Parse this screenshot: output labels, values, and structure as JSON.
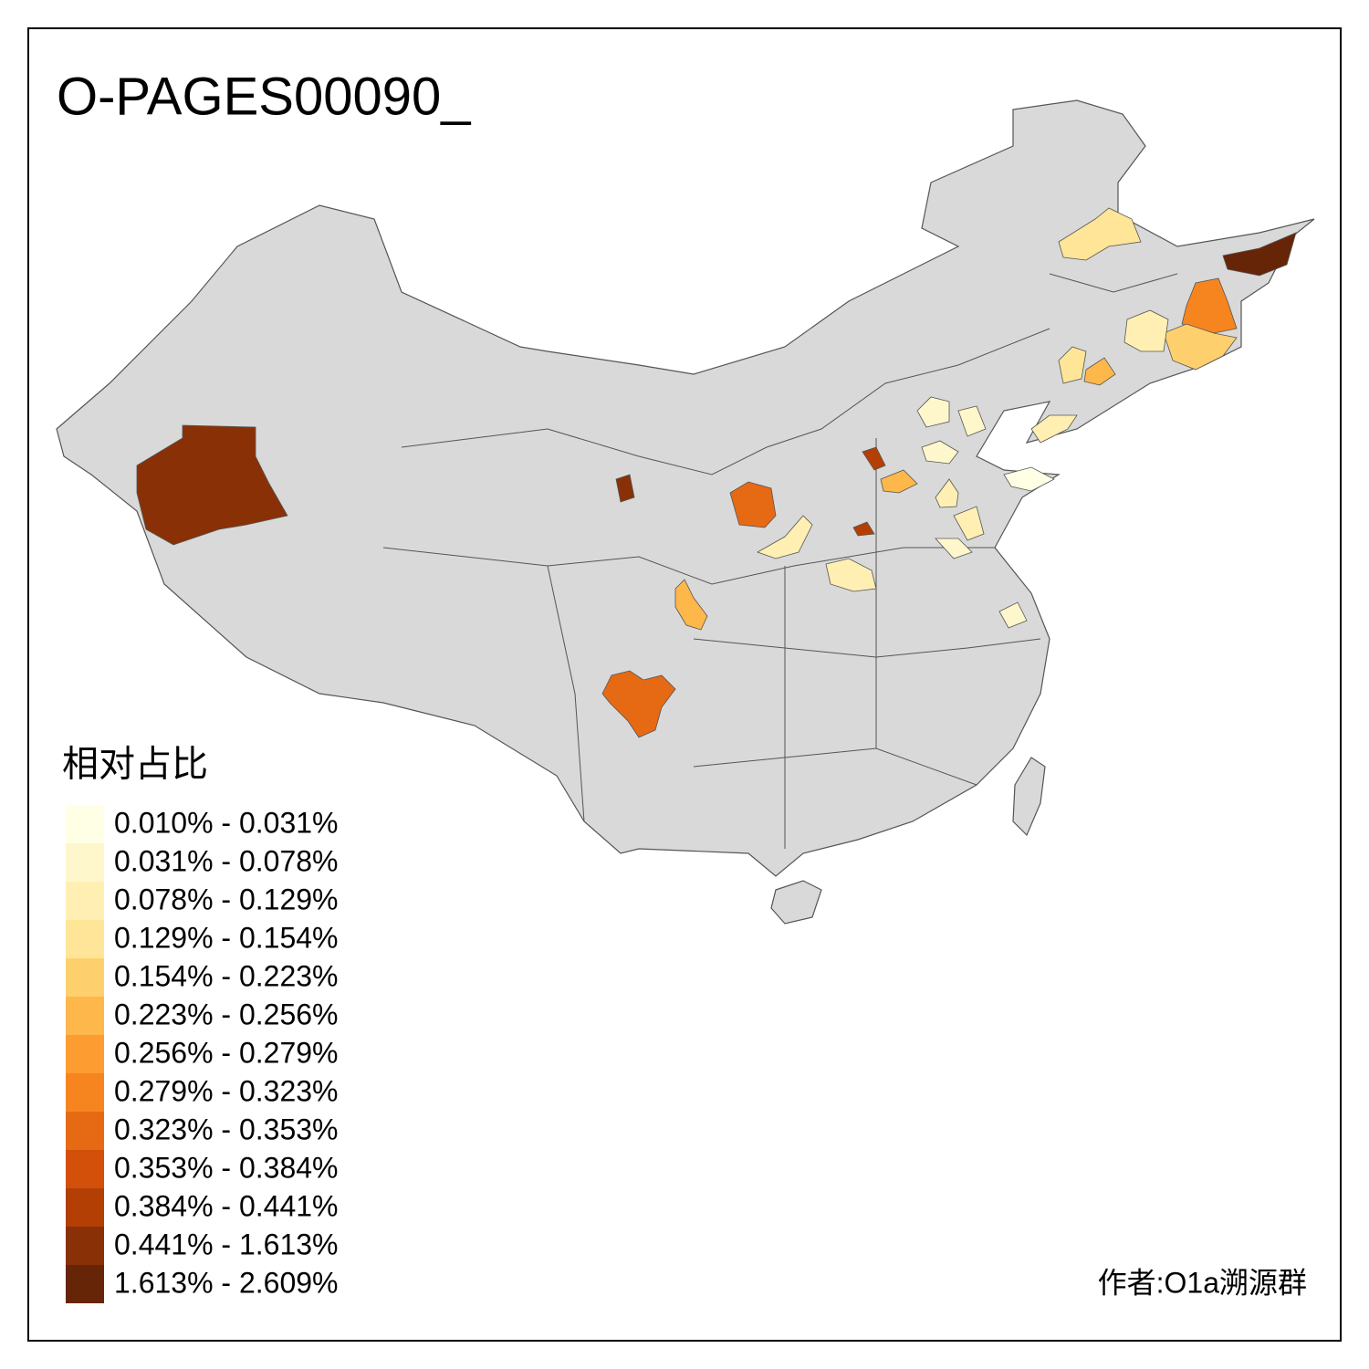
{
  "title": "O-PAGES00090_",
  "legend": {
    "title": "相对占比",
    "items": [
      {
        "label": "0.010% - 0.031%",
        "color": "#ffffe5"
      },
      {
        "label": "0.031% - 0.078%",
        "color": "#fff7cc"
      },
      {
        "label": "0.078% - 0.129%",
        "color": "#ffefb3"
      },
      {
        "label": "0.129% - 0.154%",
        "color": "#fee597"
      },
      {
        "label": "0.154% - 0.223%",
        "color": "#fed06d"
      },
      {
        "label": "0.223% - 0.256%",
        "color": "#feb74a"
      },
      {
        "label": "0.256% - 0.279%",
        "color": "#fd9c30"
      },
      {
        "label": "0.279% - 0.323%",
        "color": "#f7851f"
      },
      {
        "label": "0.323% - 0.353%",
        "color": "#e66914"
      },
      {
        "label": "0.353% - 0.384%",
        "color": "#d25009"
      },
      {
        "label": "0.384% - 0.441%",
        "color": "#b33f05"
      },
      {
        "label": "0.441% - 1.613%",
        "color": "#8a3006"
      },
      {
        "label": "1.613% - 2.609%",
        "color": "#662506"
      }
    ]
  },
  "credit": "作者:O1a溯源群"
}
